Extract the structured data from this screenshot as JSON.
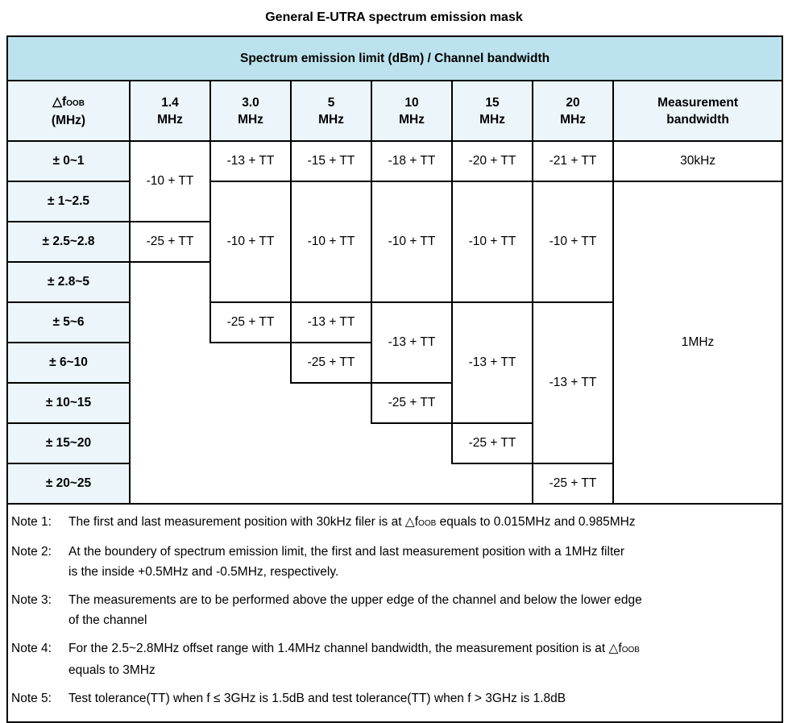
{
  "title": "General E-UTRA spectrum emission mask",
  "table": {
    "header": "Spectrum emission limit (dBm) / Channel bandwidth",
    "columns": {
      "foob": {
        "prefix": "△f",
        "sub": "OOB",
        "unit": "(MHz)"
      },
      "bw": [
        {
          "line1": "1.4",
          "line2": "MHz"
        },
        {
          "line1": "3.0",
          "line2": "MHz"
        },
        {
          "line1": "5",
          "line2": "MHz"
        },
        {
          "line1": "10",
          "line2": "MHz"
        },
        {
          "line1": "15",
          "line2": "MHz"
        },
        {
          "line1": "20",
          "line2": "MHz"
        }
      ],
      "measurement": {
        "line1": "Measurement",
        "line2": "bandwidth"
      }
    },
    "rows": [
      "± 0~1",
      "± 1~2.5",
      "± 2.5~2.8",
      "± 2.8~5",
      "± 5~6",
      "± 6~10",
      "± 10~15",
      "± 15~20",
      "± 20~25"
    ],
    "values": {
      "c14_r12": "-10 + TT",
      "c14_r3": "-25 + TT",
      "c30_r1": "-13 + TT",
      "c30_r24": "-10 + TT",
      "c30_r5": "-25 + TT",
      "c5_r1": "-15 + TT",
      "c5_r24": "-10 + TT",
      "c5_r5": "-13 + TT",
      "c5_r6": "-25 + TT",
      "c10_r1": "-18 + TT",
      "c10_r24": "-10 + TT",
      "c10_r56": "-13 + TT",
      "c10_r7": "-25 + TT",
      "c15_r1": "-20 + TT",
      "c15_r24": "-10 + TT",
      "c15_r57": "-13 + TT",
      "c15_r8": "-25 + TT",
      "c20_r1": "-21 + TT",
      "c20_r24": "-10 + TT",
      "c20_r58": "-13 + TT",
      "c20_r9": "-25 + TT",
      "mb_r1": "30kHz",
      "mb_r29": "1MHz"
    }
  },
  "notes": [
    {
      "label": "Note 1:",
      "lines": [
        "The first and last measurement position with 30kHz filer is at △fOOB equals to 0.015MHz and 0.985MHz",
        ""
      ]
    },
    {
      "label": "Note 2:",
      "lines": [
        "At the boundery of spectrum emission limit, the first and last measurement position with a 1MHz filter",
        "is the inside +0.5MHz and -0.5MHz, respectively."
      ]
    },
    {
      "label": "Note 3:",
      "lines": [
        "The measurements are to be performed above the upper edge of the channel and below the lower edge",
        "of the channel"
      ]
    },
    {
      "label": "Note 4:",
      "lines": [
        "For the 2.5~2.8MHz offset range with 1.4MHz channel bandwidth, the measurement position is at △fOOB",
        "equals to 3MHz"
      ]
    },
    {
      "label": "Note 5:",
      "lines": [
        "Test tolerance(TT) when f ≤ 3GHz is 1.5dB and test tolerance(TT) when f > 3GHz is 1.8dB",
        ""
      ]
    }
  ],
  "colors": {
    "header_bg": "#bce3ed",
    "subheader_bg": "#ecf6fa",
    "border_color": "#000000"
  }
}
